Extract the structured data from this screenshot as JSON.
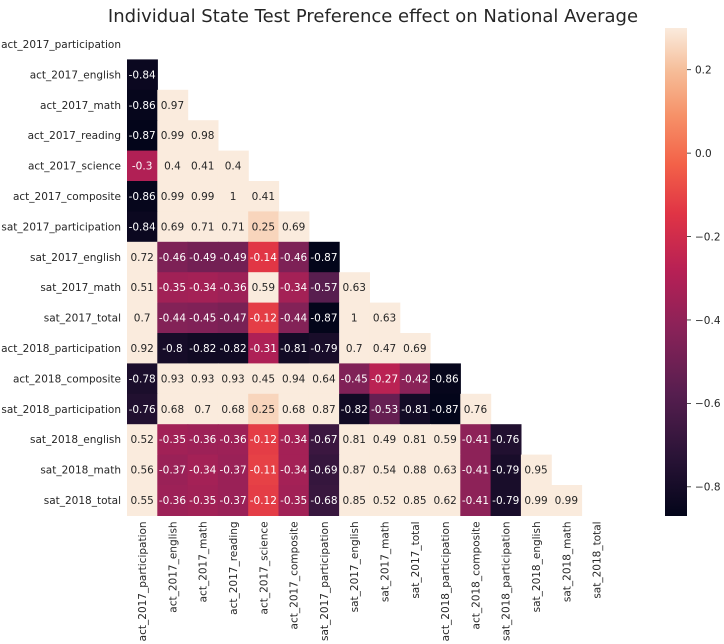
{
  "chart_data": {
    "type": "heatmap",
    "title": "Individual State Test Preference effect on National Average",
    "labels": [
      "act_2017_participation",
      "act_2017_english",
      "act_2017_math",
      "act_2017_reading",
      "act_2017_science",
      "act_2017_composite",
      "sat_2017_participation",
      "sat_2017_english",
      "sat_2017_math",
      "sat_2017_total",
      "act_2018_participation",
      "act_2018_composite",
      "sat_2018_participation",
      "sat_2018_english",
      "sat_2018_math",
      "sat_2018_total"
    ],
    "mask": "upper-triangle-and-diagonal",
    "values": [
      [],
      [
        -0.84
      ],
      [
        -0.86,
        0.97
      ],
      [
        -0.87,
        0.99,
        0.98
      ],
      [
        -0.3,
        0.4,
        0.41,
        0.4
      ],
      [
        -0.86,
        0.99,
        0.99,
        1,
        0.41
      ],
      [
        -0.84,
        0.69,
        0.71,
        0.71,
        0.25,
        0.69
      ],
      [
        0.72,
        -0.46,
        -0.49,
        -0.49,
        -0.14,
        -0.46,
        -0.87
      ],
      [
        0.51,
        -0.35,
        -0.34,
        -0.36,
        0.59,
        -0.34,
        -0.57,
        0.63
      ],
      [
        0.7,
        -0.44,
        -0.45,
        -0.47,
        -0.12,
        -0.44,
        -0.87,
        1,
        0.63
      ],
      [
        0.92,
        -0.8,
        -0.82,
        -0.82,
        -0.31,
        -0.81,
        -0.79,
        0.7,
        0.47,
        0.69
      ],
      [
        -0.78,
        0.93,
        0.93,
        0.93,
        0.45,
        0.94,
        0.64,
        -0.45,
        -0.27,
        -0.42,
        -0.86
      ],
      [
        -0.76,
        0.68,
        0.7,
        0.68,
        0.25,
        0.68,
        0.87,
        -0.82,
        -0.53,
        -0.81,
        -0.87,
        0.76
      ],
      [
        0.52,
        -0.35,
        -0.36,
        -0.36,
        -0.12,
        -0.34,
        -0.67,
        0.81,
        0.49,
        0.81,
        0.59,
        -0.41,
        -0.76
      ],
      [
        0.56,
        -0.37,
        -0.34,
        -0.37,
        -0.11,
        -0.34,
        -0.69,
        0.87,
        0.54,
        0.88,
        0.63,
        -0.41,
        -0.79,
        0.95
      ],
      [
        0.55,
        -0.36,
        -0.35,
        -0.37,
        -0.12,
        -0.35,
        -0.68,
        0.85,
        0.52,
        0.85,
        0.62,
        -0.41,
        -0.79,
        0.99,
        0.99
      ]
    ],
    "color_scale": {
      "name": "rocket",
      "vmin": -0.87,
      "vmax": 0.3,
      "ticks": [
        -0.8,
        -0.6,
        -0.4,
        -0.2,
        0.0,
        0.2
      ],
      "tick_labels": [
        "−0.8",
        "−0.6",
        "−0.4",
        "−0.2",
        "0.0",
        "0.2"
      ]
    },
    "grid": false,
    "legend": "colorbar-right"
  }
}
